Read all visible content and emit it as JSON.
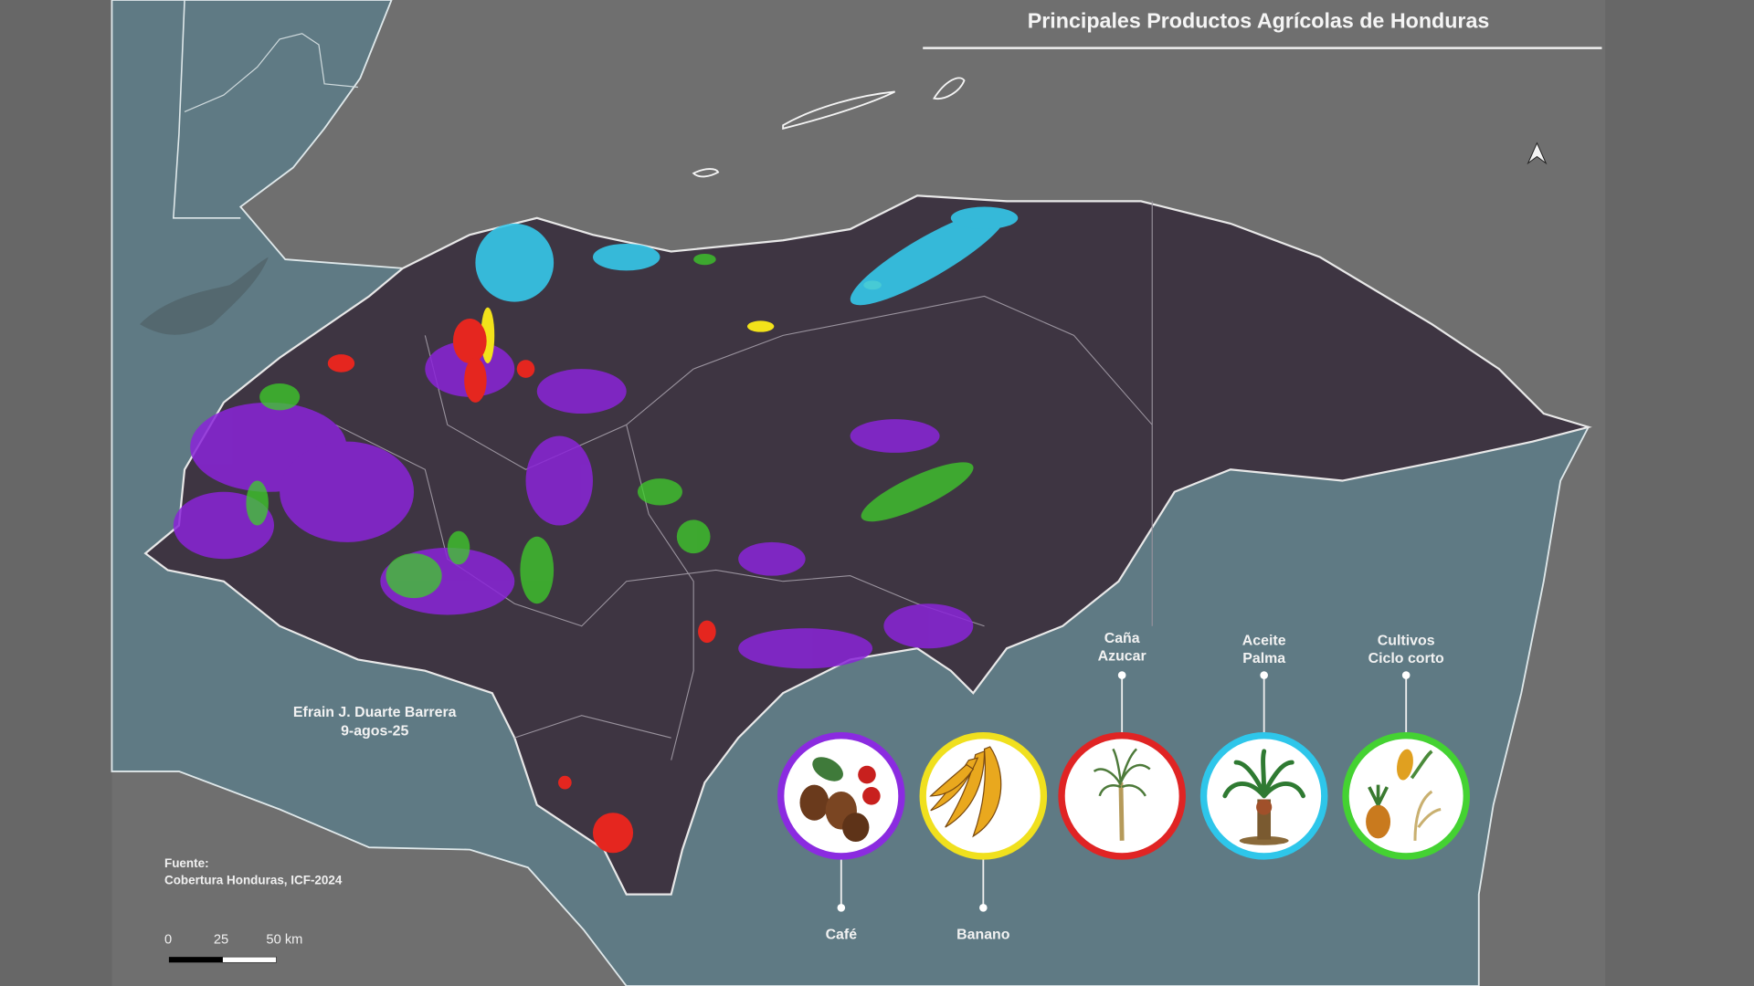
{
  "map": {
    "title": "Principales Productos Agrícolas de Honduras",
    "author": "Efrain J. Duarte Barrera",
    "date": "9-agos-25",
    "source_label": "Fuente:",
    "source": "Cobertura Honduras, ICF-2024",
    "scale_bar": {
      "ticks": [
        "0",
        "25",
        "50 km"
      ]
    },
    "north_arrow": "north-arrow-icon",
    "colors": {
      "frame_background": "#676767",
      "sea": "#6f6f6f",
      "neighbor_land": "#5f7a84",
      "honduras": "#3e3542"
    }
  },
  "legend": [
    {
      "label": "Café",
      "color": "#8b2be0",
      "icon": "coffee-icon"
    },
    {
      "label": "Banano",
      "color": "#f0e01e",
      "icon": "banana-icon"
    },
    {
      "label_line1": "Caña",
      "label_line2": "Azucar",
      "color": "#e02424",
      "icon": "sugarcane-icon"
    },
    {
      "label_line1": "Aceite",
      "label_line2": "Palma",
      "color": "#2ec6ea",
      "icon": "palm-icon"
    },
    {
      "label_line1": "Cultivos",
      "label_line2": "Ciclo corto",
      "color": "#44d232",
      "icon": "short-cycle-crops-icon"
    }
  ]
}
